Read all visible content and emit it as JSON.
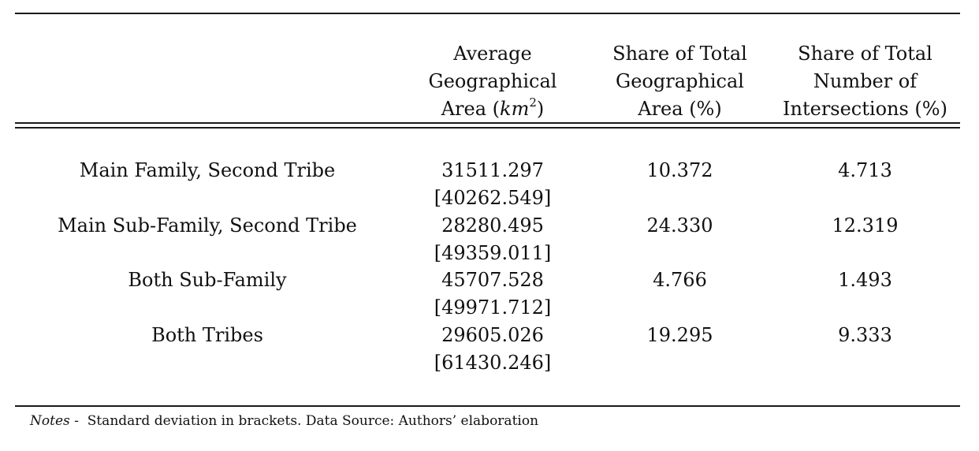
{
  "header": {
    "col1": [
      "Average",
      "Geographical"
    ],
    "col1_unit_prefix": "Area (",
    "col1_unit_var": "km",
    "col1_unit_exp": "2",
    "col1_unit_suffix": ")",
    "col2": [
      "Share of Total",
      "Geographical",
      "Area (%)"
    ],
    "col3": [
      "Share of Total",
      "Number of",
      "Intersections (%)"
    ]
  },
  "rows": [
    {
      "label": "Main Family, Second Tribe",
      "avg": "31511.297",
      "sd": "[40262.549]",
      "share_area": "10.372",
      "share_intersections": "4.713"
    },
    {
      "label": "Main Sub-Family, Second Tribe",
      "avg": "28280.495",
      "sd": "[49359.011]",
      "share_area": "24.330",
      "share_intersections": "12.319"
    },
    {
      "label": "Both Sub-Family",
      "avg": "45707.528",
      "sd": "[49971.712]",
      "share_area": "4.766",
      "share_intersections": "1.493"
    },
    {
      "label": "Both Tribes",
      "avg": "29605.026",
      "sd": "[61430.246]",
      "share_area": "19.295",
      "share_intersections": "9.333"
    }
  ],
  "notes": {
    "prefix": "Notes",
    "dash": " -  ",
    "text": "Standard deviation in brackets. Data Source: Authors’ elaboration"
  }
}
